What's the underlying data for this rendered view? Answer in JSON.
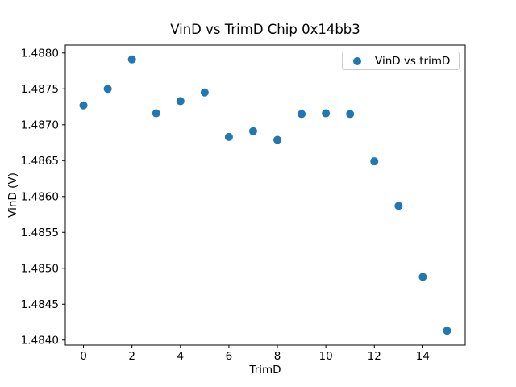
{
  "figure": {
    "background": "#ffffff"
  },
  "chart_data": {
    "type": "scatter",
    "title": "VinD vs TrimD Chip 0x14bb3",
    "xlabel": "TrimD",
    "ylabel": "VinD (V)",
    "legend_label": "VinD vs trimD",
    "legend_position": "upper right",
    "grid": false,
    "marker_color": "#1f77b4",
    "axis_color": "#000000",
    "x": [
      0,
      1,
      2,
      3,
      4,
      5,
      6,
      7,
      8,
      9,
      10,
      11,
      12,
      13,
      14,
      15
    ],
    "y": [
      1.48727,
      1.4875,
      1.48791,
      1.48716,
      1.48733,
      1.48745,
      1.48683,
      1.48691,
      1.48679,
      1.48715,
      1.48716,
      1.48715,
      1.48649,
      1.48587,
      1.48488,
      1.48413
    ],
    "xlim": [
      -0.75,
      15.75
    ],
    "ylim": [
      1.48393,
      1.48811
    ],
    "xticks": {
      "values": [
        0,
        2,
        4,
        6,
        8,
        10,
        12,
        14
      ],
      "labels": [
        "0",
        "2",
        "4",
        "6",
        "8",
        "10",
        "12",
        "14"
      ]
    },
    "yticks": {
      "values": [
        1.484,
        1.4845,
        1.485,
        1.4855,
        1.486,
        1.4865,
        1.487,
        1.4875,
        1.488
      ],
      "labels": [
        "1.4840",
        "1.4845",
        "1.4850",
        "1.4855",
        "1.4860",
        "1.4865",
        "1.4870",
        "1.4875",
        "1.4880"
      ]
    }
  }
}
